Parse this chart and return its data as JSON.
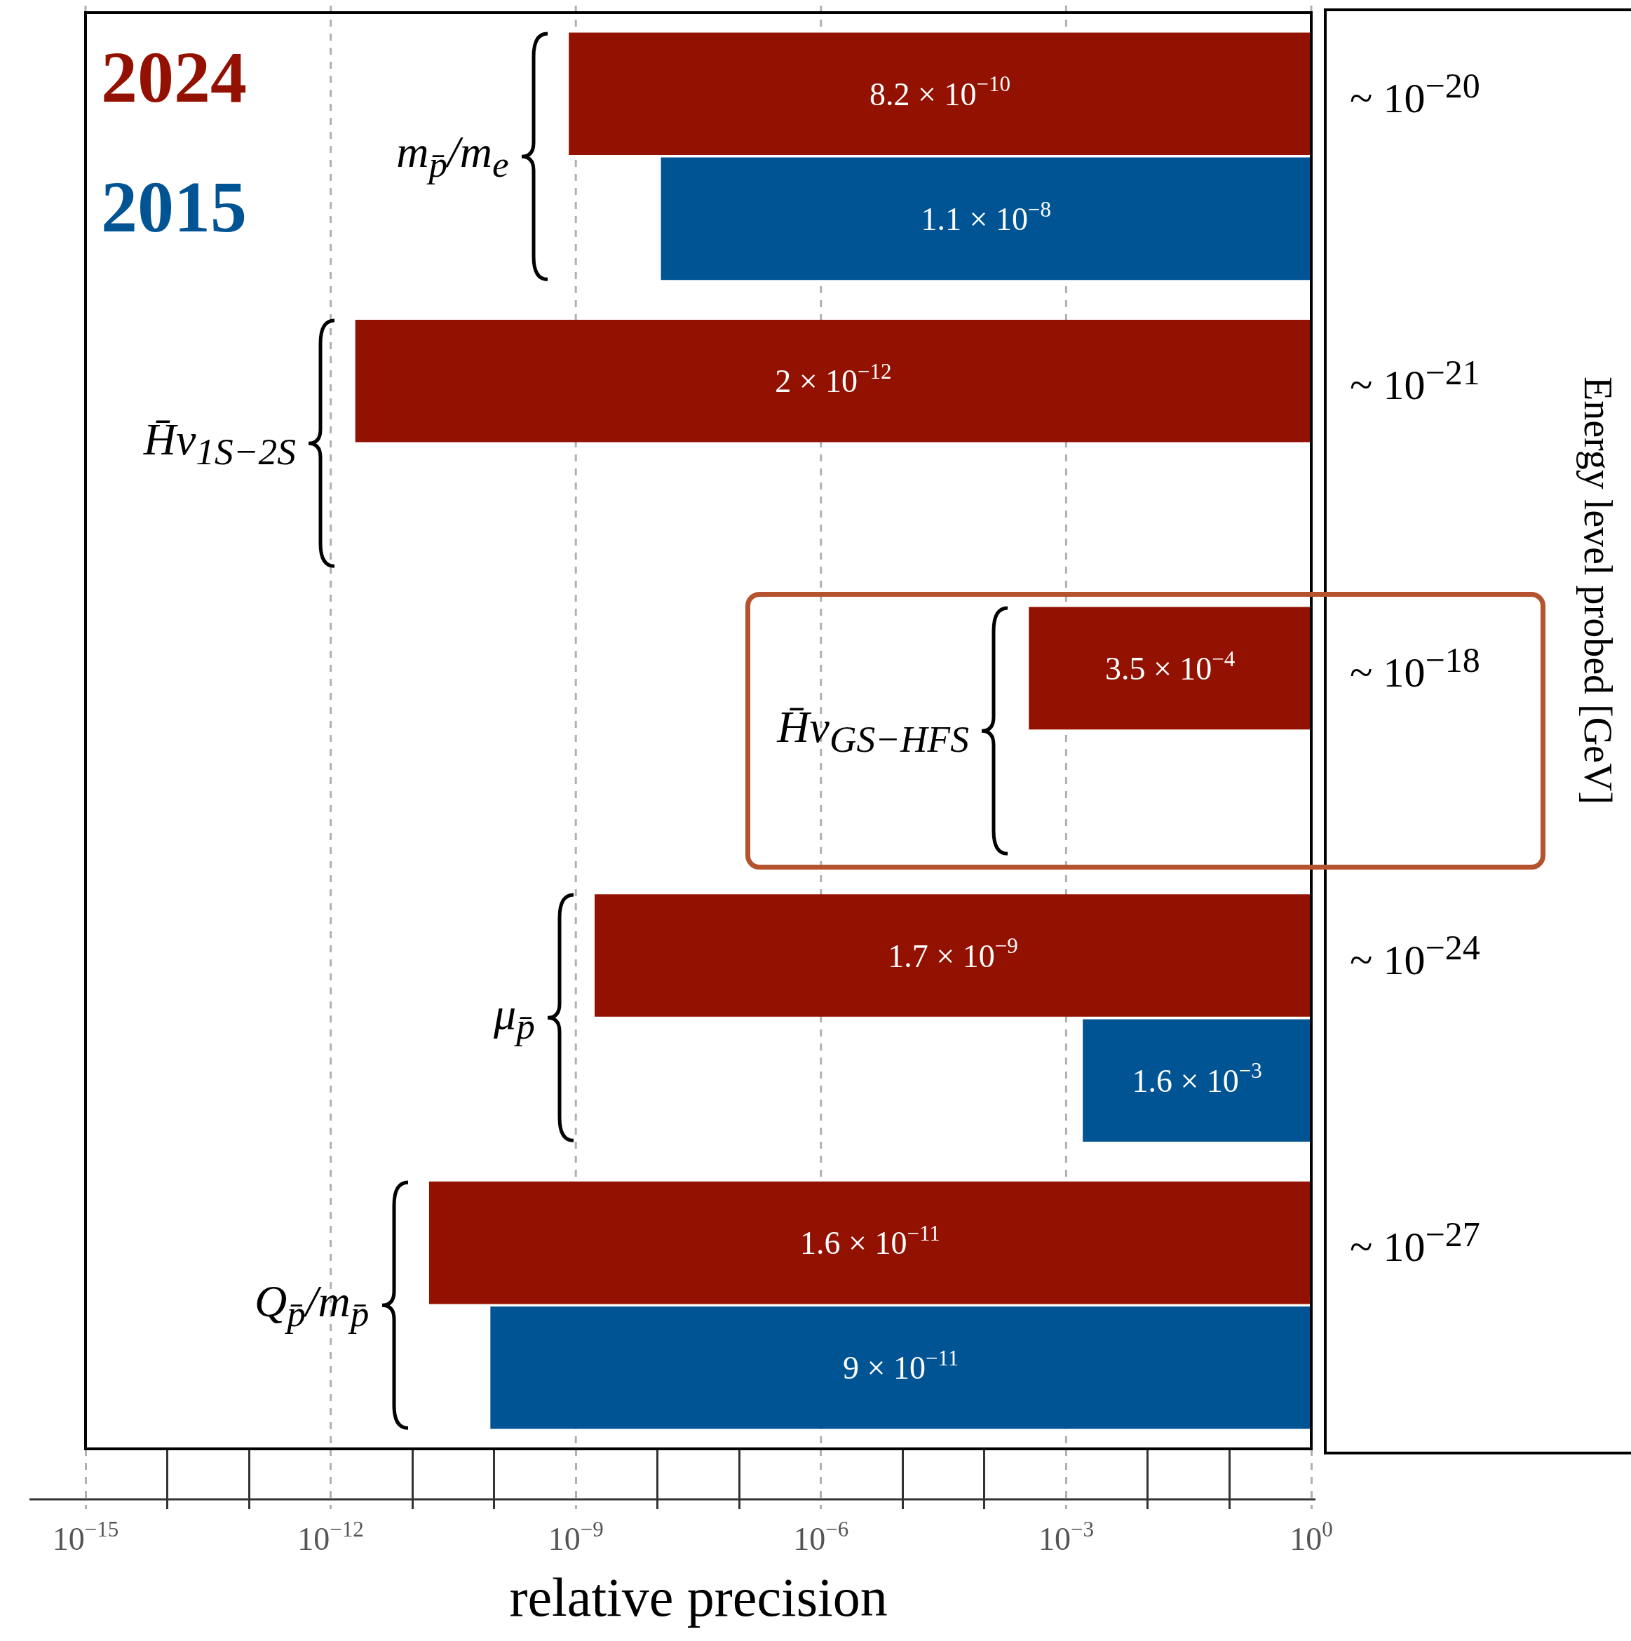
{
  "chart_data": {
    "type": "bar",
    "orientation": "horizontal",
    "log": "x",
    "xlabel": "relative precision",
    "categories": [
      "m$_{p̄}$/m$_{e}$",
      "H̄ν$_{1S−2S}$",
      "H̄ν$_{GS−HFS}$",
      "μ$_{p̄}$",
      "Q$_{p̄}$/m$_{p̄}$"
    ],
    "series": [
      {
        "name": "2024",
        "color": "#931100",
        "base": [
          8.2e-10,
          2e-12,
          0.00035,
          1.7e-09,
          1.6e-11
        ],
        "values": [
          1,
          1,
          1,
          1,
          1
        ]
      },
      {
        "name": "2015",
        "color": "#005493",
        "base": [
          1.1e-08,
          null,
          null,
          0.0016,
          9e-11
        ],
        "values": [
          1,
          null,
          null,
          1,
          1
        ]
      }
    ],
    "xlim": [
      1e-15,
      1
    ],
    "xticks": [
      {
        "value": 1e-15,
        "label": "10$^{−15}$"
      },
      {
        "value": 1e-12,
        "label": "10$^{−12}$"
      },
      {
        "value": 1e-09,
        "label": "10$^{−9}$"
      },
      {
        "value": 1e-06,
        "label": "10$^{−6}$"
      },
      {
        "value": 0.001,
        "label": "10$^{−3}$"
      },
      {
        "value": 1,
        "label": "10$^{0}$"
      }
    ],
    "grid": "x",
    "annotations": [
      "8.2 × 10$^{−10}$",
      "1.1 × 10$^{−8}$",
      "2 × 10$^{−12}$",
      "3.5 × 10$^{−4}$",
      "1.7 × 10$^{−9}$",
      "1.6 × 10$^{−3}$",
      "1.6 × 10$^{−11}$",
      "9 × 10$^{−11}$",
      "~ 10$^{−20}$",
      "~ 10$^{−21}$",
      "~ 10$^{−18}$",
      "~ 10$^{−24}$",
      "~ 10$^{−27}$",
      "Energy level probed [GeV]"
    ]
  }
}
